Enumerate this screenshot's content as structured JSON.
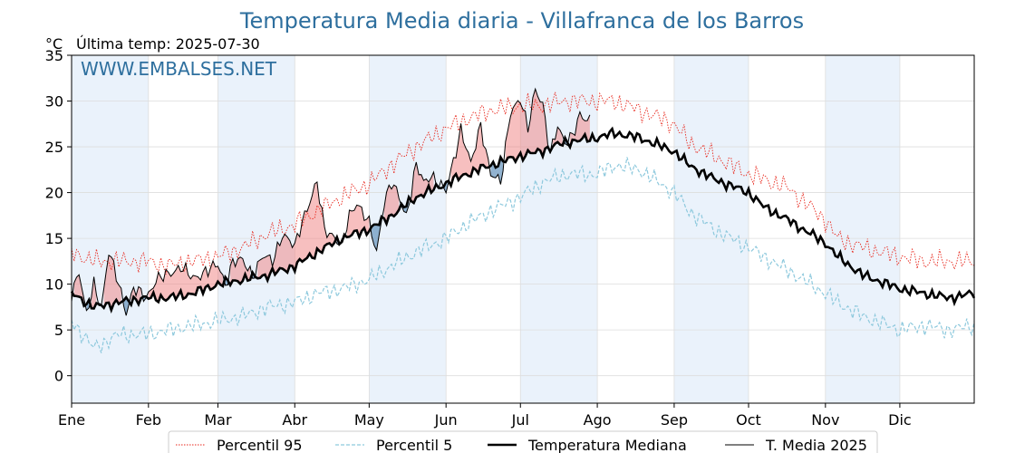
{
  "header": {
    "title": "Temperatura Media diaria - Villafranca de los Barros",
    "unit": "°C",
    "last_temp": "Última temp: 2025-07-30"
  },
  "watermark": "WWW.EMBALSES.NET",
  "colors": {
    "title": "#2e6f9e",
    "p95": "#e8261b",
    "p5": "#8ec9dd",
    "median": "#000000",
    "current": "#000000",
    "above_fill": "#f08080",
    "below_fill": "#6d9ac0",
    "band": "#eaf2fb"
  },
  "legend": [
    {
      "key": "p95",
      "label": "Percentil 95",
      "style": "dotted-red"
    },
    {
      "key": "p5",
      "label": "Percentil 5",
      "style": "dashed-lightblue"
    },
    {
      "key": "median",
      "label": "Temperatura Mediana",
      "style": "thick-black"
    },
    {
      "key": "current",
      "label": "T. Media 2025",
      "style": "thin-black"
    }
  ],
  "chart_data": {
    "type": "line",
    "title": "Temperatura Media diaria - Villafranca de los Barros",
    "ylabel": "°C",
    "xlabel": "",
    "ylim": [
      -3,
      35
    ],
    "xlim": [
      1,
      365
    ],
    "yticks": [
      0,
      5,
      10,
      15,
      20,
      25,
      30,
      35
    ],
    "month_labels": [
      "Ene",
      "Feb",
      "Mar",
      "Abr",
      "May",
      "Jun",
      "Jul",
      "Ago",
      "Sep",
      "Oct",
      "Nov",
      "Dic"
    ],
    "month_start_days": [
      1,
      32,
      60,
      91,
      121,
      152,
      182,
      213,
      244,
      274,
      305,
      335
    ],
    "grid": true,
    "legend_position": "bottom",
    "shaded_months": [
      "Ene",
      "Mar",
      "May",
      "Jul",
      "Sep",
      "Nov"
    ],
    "series": [
      {
        "name": "Percentil 95",
        "x": [
          1,
          10,
          20,
          31,
          40,
          50,
          60,
          70,
          80,
          91,
          100,
          110,
          121,
          130,
          140,
          152,
          160,
          170,
          182,
          190,
          200,
          213,
          220,
          230,
          244,
          250,
          260,
          274,
          280,
          290,
          305,
          310,
          320,
          335,
          345,
          355,
          365
        ],
        "values": [
          13.5,
          12.5,
          12.5,
          12.5,
          12,
          12.5,
          13,
          14,
          15.5,
          16.5,
          18,
          19.5,
          21,
          23,
          25,
          27,
          28,
          29,
          29.5,
          29.5,
          30,
          30,
          30,
          29,
          27.5,
          25.5,
          24,
          22,
          21.5,
          20.5,
          17,
          15,
          14,
          13,
          12.5,
          12.5,
          12.5
        ]
      },
      {
        "name": "Percentil 5",
        "x": [
          1,
          10,
          20,
          31,
          40,
          50,
          60,
          70,
          80,
          91,
          100,
          110,
          121,
          130,
          140,
          152,
          160,
          170,
          182,
          190,
          200,
          213,
          220,
          230,
          244,
          250,
          260,
          274,
          280,
          290,
          305,
          310,
          320,
          335,
          345,
          355,
          365
        ],
        "values": [
          6,
          3,
          4.5,
          4.5,
          5,
          5.5,
          6,
          6.5,
          7.5,
          8,
          9,
          9.5,
          10.5,
          12,
          13.5,
          15,
          16.5,
          18,
          19.5,
          21,
          22,
          22,
          23,
          22.5,
          20,
          18,
          16,
          14,
          13,
          11.5,
          9,
          8,
          6.5,
          5,
          5.5,
          5,
          5.5
        ]
      },
      {
        "name": "Temperatura Mediana",
        "x": [
          1,
          10,
          20,
          31,
          40,
          50,
          60,
          70,
          80,
          91,
          100,
          110,
          121,
          130,
          140,
          152,
          160,
          170,
          182,
          190,
          200,
          213,
          220,
          230,
          244,
          250,
          260,
          274,
          280,
          290,
          305,
          310,
          320,
          335,
          345,
          355,
          365
        ],
        "values": [
          9,
          7.5,
          8,
          8.5,
          8.5,
          9,
          10,
          10.5,
          11,
          12,
          13.5,
          15,
          16,
          17.5,
          19.5,
          21,
          22,
          23,
          24,
          24.5,
          25.5,
          26,
          26.5,
          26,
          24.5,
          23,
          21.5,
          20,
          18.5,
          17,
          14.5,
          13,
          11,
          9.5,
          9,
          8.5,
          9
        ]
      },
      {
        "name": "T. Media 2025",
        "x": [
          1,
          4,
          7,
          10,
          13,
          16,
          20,
          23,
          26,
          31,
          35,
          40,
          45,
          50,
          55,
          60,
          63,
          66,
          70,
          74,
          78,
          82,
          86,
          91,
          94,
          97,
          100,
          103,
          106,
          110,
          113,
          116,
          121,
          124,
          127,
          130,
          133,
          136,
          140,
          143,
          146,
          152,
          155,
          158,
          162,
          166,
          170,
          174,
          178,
          182,
          185,
          188,
          191,
          194,
          197,
          200,
          203,
          206,
          210
        ],
        "values": [
          9,
          11.5,
          6.5,
          10,
          7.5,
          13.5,
          10,
          7,
          9.5,
          8.5,
          10.5,
          11,
          12,
          10.5,
          11.5,
          12,
          10,
          12.5,
          12.5,
          11,
          13,
          12.5,
          15.5,
          14,
          17,
          19,
          21,
          16,
          15.5,
          14,
          17.5,
          19,
          16.5,
          13.5,
          19,
          21,
          19.5,
          17.5,
          23,
          21,
          22,
          20,
          23.5,
          27,
          23,
          27.5,
          22,
          21,
          29,
          30,
          27,
          31.5,
          29.5,
          24,
          27.5,
          25.5,
          26,
          28.5,
          28
        ]
      }
    ]
  }
}
